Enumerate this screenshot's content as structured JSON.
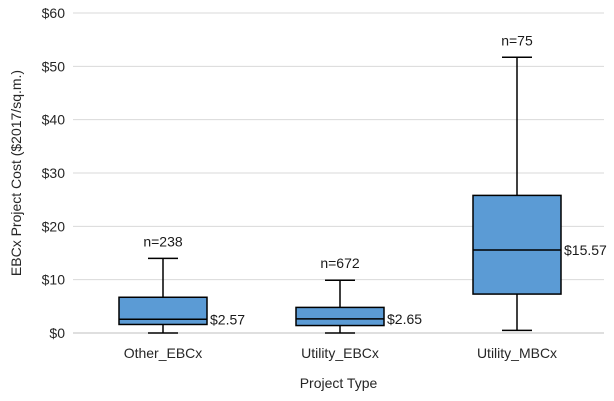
{
  "chart_data": {
    "type": "boxplot",
    "xlabel": "Project Type",
    "ylabel": "EBCx Project Cost ($2017/sq.m.)",
    "ylim": [
      0,
      60
    ],
    "yticks": [
      0,
      10,
      20,
      30,
      40,
      50,
      60
    ],
    "ytick_labels": [
      "$0",
      "$10",
      "$20",
      "$30",
      "$40",
      "$50",
      "$60"
    ],
    "grid": "horizontal",
    "box_color": "#5B9BD5",
    "categories": [
      "Other_EBCx",
      "Utility_EBCx",
      "Utility_MBCx"
    ],
    "boxes": [
      {
        "category": "Other_EBCx",
        "whisker_low": 0.0,
        "q1": 1.6,
        "median": 2.57,
        "q3": 6.7,
        "whisker_high": 14.0,
        "n_label": "n=238",
        "median_label": "$2.57"
      },
      {
        "category": "Utility_EBCx",
        "whisker_low": 0.0,
        "q1": 1.4,
        "median": 2.65,
        "q3": 4.8,
        "whisker_high": 9.9,
        "n_label": "n=672",
        "median_label": "$2.65"
      },
      {
        "category": "Utility_MBCx",
        "whisker_low": 0.5,
        "q1": 7.3,
        "median": 15.57,
        "q3": 25.8,
        "whisker_high": 51.7,
        "n_label": "n=75",
        "median_label": "$15.57"
      }
    ]
  }
}
